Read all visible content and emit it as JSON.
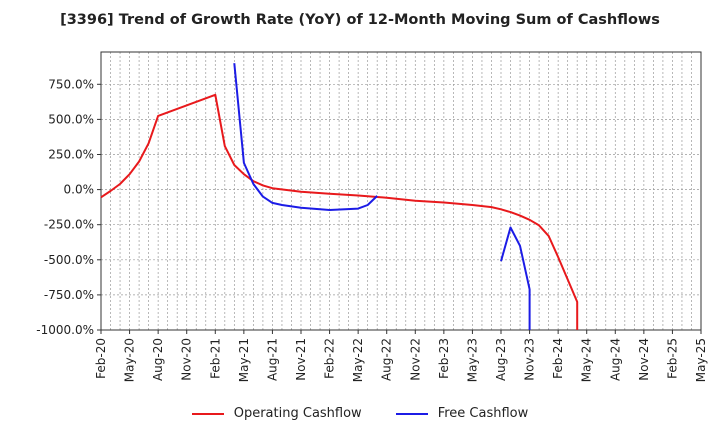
{
  "chart_data": {
    "type": "line",
    "title": "[3396]  Trend of Growth Rate (YoY) of 12-Month Moving Sum of Cashflows",
    "xlabel": "",
    "ylabel": "",
    "x_ticks": [
      "Feb-20",
      "May-20",
      "Aug-20",
      "Nov-20",
      "Feb-21",
      "May-21",
      "Aug-21",
      "Nov-21",
      "Feb-22",
      "May-22",
      "Aug-22",
      "Nov-22",
      "Feb-23",
      "May-23",
      "Aug-23",
      "Nov-23",
      "Feb-24",
      "May-24",
      "Aug-24",
      "Nov-24",
      "Feb-25",
      "May-25"
    ],
    "y_ticks": [
      750,
      500,
      250,
      0,
      -250,
      -500,
      -750,
      -1000
    ],
    "y_tick_labels": [
      "750.0%",
      "500.0%",
      "250.0%",
      "0.0%",
      "-250.0%",
      "-500.0%",
      "-750.0%",
      "-1000.0%"
    ],
    "ylim": [
      -1000,
      980
    ],
    "grid": true,
    "legend_position": "bottom",
    "series": [
      {
        "name": "Operating Cashflow",
        "color": "#e8191c",
        "x": [
          "2020-02",
          "2020-03",
          "2020-04",
          "2020-05",
          "2020-06",
          "2020-07",
          "2020-08",
          "2021-02",
          "2021-03",
          "2021-04",
          "2021-05",
          "2021-06",
          "2021-07",
          "2021-08",
          "2021-11",
          "2022-02",
          "2022-05",
          "2022-08",
          "2022-11",
          "2023-02",
          "2023-05",
          "2023-07",
          "2023-08",
          "2023-09",
          "2023-10",
          "2023-11",
          "2023-12",
          "2024-01",
          "2024-02",
          "2024-03",
          "2024-04",
          "2024-04"
        ],
        "values": [
          -55,
          -10,
          40,
          110,
          200,
          330,
          525,
          675,
          310,
          175,
          110,
          60,
          30,
          10,
          -15,
          -30,
          -42,
          -58,
          -80,
          -92,
          -110,
          -125,
          -140,
          -160,
          -185,
          -215,
          -255,
          -330,
          -480,
          -640,
          -800,
          -1000
        ]
      },
      {
        "name": "Free Cashflow",
        "color": "#1c1ce6",
        "segments": [
          {
            "x": [
              "2021-04",
              "2021-05",
              "2021-06",
              "2021-07",
              "2021-08",
              "2021-09",
              "2021-11",
              "2022-02",
              "2022-05",
              "2022-06",
              "2022-07"
            ],
            "values": [
              900,
              190,
              40,
              -50,
              -95,
              -110,
              -130,
              -145,
              -135,
              -110,
              -45
            ]
          },
          {
            "x": [
              "2023-08",
              "2023-09",
              "2023-10",
              "2023-11",
              "2023-11"
            ],
            "values": [
              -510,
              -270,
              -400,
              -710,
              -1000
            ]
          }
        ]
      }
    ]
  }
}
